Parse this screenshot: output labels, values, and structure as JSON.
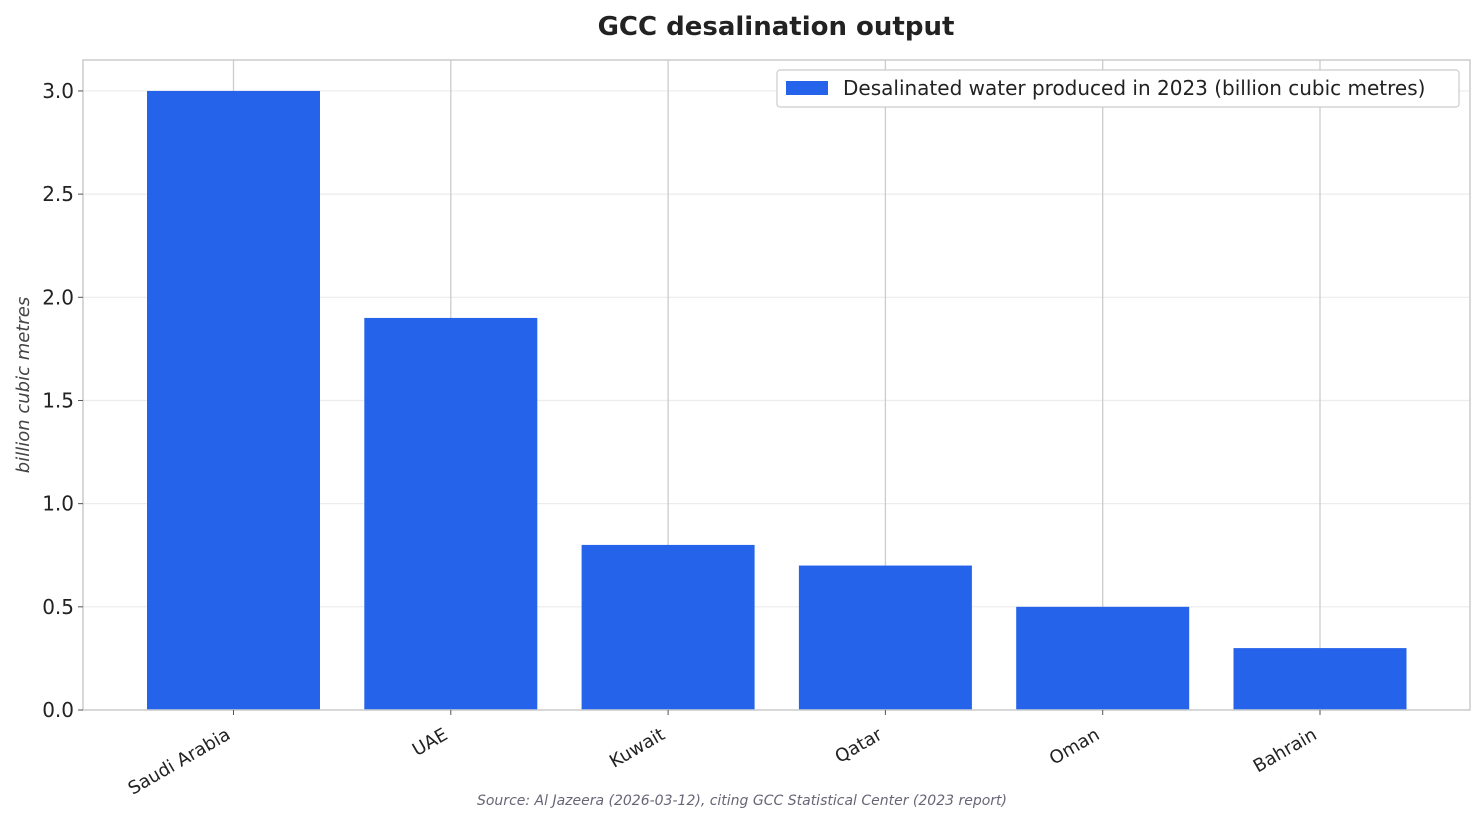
{
  "chart_data": {
    "type": "bar",
    "title": "GCC desalination output",
    "ylabel": "billion cubic metres",
    "xlabel": "",
    "categories": [
      "Saudi Arabia",
      "UAE",
      "Kuwait",
      "Qatar",
      "Oman",
      "Bahrain"
    ],
    "series": [
      {
        "name": "Desalinated water produced in 2023 (billion cubic metres)",
        "values": [
          3.0,
          1.9,
          0.8,
          0.7,
          0.5,
          0.3
        ]
      }
    ],
    "ylim": [
      0,
      3.15
    ],
    "yticks": [
      "0.0",
      "0.5",
      "1.0",
      "1.5",
      "2.0",
      "2.5",
      "3.0"
    ],
    "ytick_values": [
      0,
      0.5,
      1.0,
      1.5,
      2.0,
      2.5,
      3.0
    ],
    "grid": "y",
    "legend": "top-right",
    "bar_color": "#2563eb",
    "source": "Source: Al Jazeera (2026-03-12), citing GCC Statistical Center (2023 report)"
  }
}
